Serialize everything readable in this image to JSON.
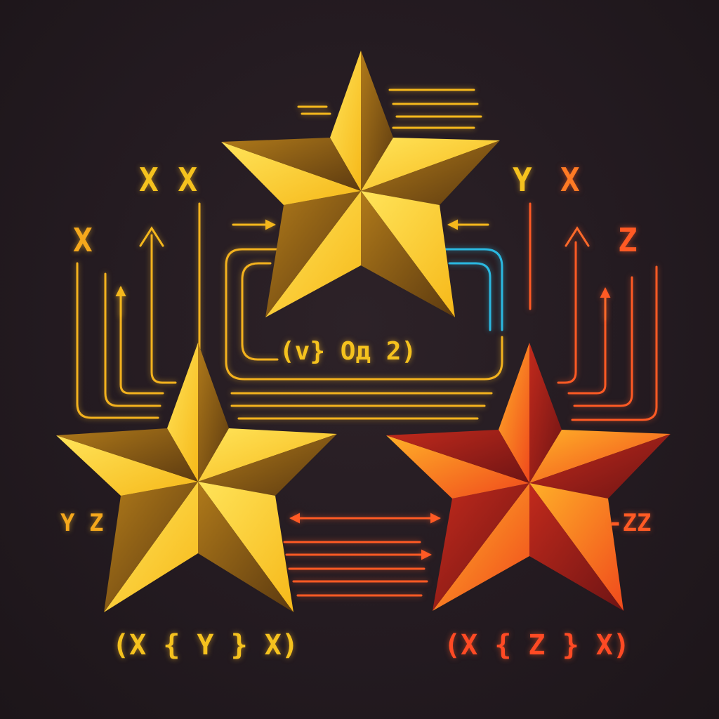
{
  "colors": {
    "background": "#241b21",
    "gold": "#ffd21f",
    "gold_dark": "#8a5a12",
    "amber": "#f5a81c",
    "orange": "#ff6a1e",
    "red": "#e8361c",
    "red_dark": "#8f1818",
    "cyan": "#2bb8e0"
  },
  "labels": {
    "top_left": "X X",
    "top_right_y": "Y",
    "top_right_x": "X",
    "left_x": "X",
    "right_z": "Z",
    "center_formula": "(v} Oд 2)",
    "left_side": "Y Z",
    "right_side": "-ZZ",
    "bottom_left_formula": "(X { Y } X)",
    "bottom_right_formula": "(X { Z } X)"
  },
  "stars": [
    {
      "name": "top-star",
      "color": "gold"
    },
    {
      "name": "bottom-left-star",
      "color": "gold"
    },
    {
      "name": "bottom-right-star",
      "color": "red"
    }
  ]
}
